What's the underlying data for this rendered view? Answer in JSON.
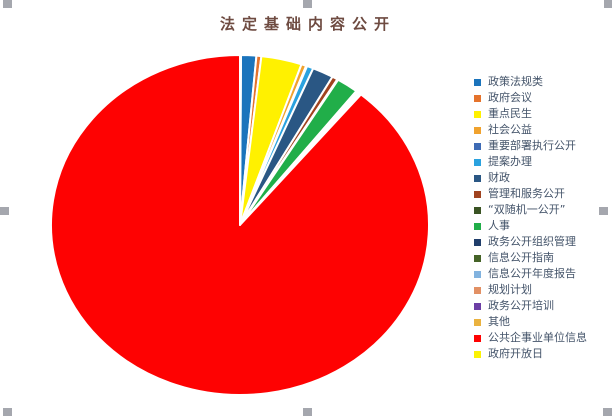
{
  "selection": {
    "handle_color": "#A5A7AE"
  },
  "chart_data": {
    "type": "pie",
    "title": "法定基础内容公开",
    "title_color": "#6E4B41",
    "legend_position": "right",
    "legend_text_color": "#44546A",
    "grid": false,
    "start_angle_deg": 0.3,
    "slices": [
      {
        "label": "政策法规类",
        "color": "#1B74BC",
        "angle_deg": 4.7,
        "percent": 1.3
      },
      {
        "label": "政府会议",
        "color": "#E5732C",
        "angle_deg": 1.5,
        "percent": 0.4
      },
      {
        "label": "重点民生",
        "color": "#FFF100",
        "angle_deg": 12.5,
        "percent": 3.5
      },
      {
        "label": "社会公益",
        "color": "#F0A22E",
        "angle_deg": 1.5,
        "percent": 0.4
      },
      {
        "label": "重要部署执行公开",
        "color": "#3E6BB5",
        "angle_deg": 0.3,
        "percent": 0.1
      },
      {
        "label": "提案办理",
        "color": "#2AA2DF",
        "angle_deg": 2.0,
        "percent": 0.6
      },
      {
        "label": "财政",
        "color": "#2A5784",
        "angle_deg": 6.5,
        "percent": 1.8
      },
      {
        "label": "管理和服务公开",
        "color": "#A0431F",
        "angle_deg": 1.7,
        "percent": 0.5
      },
      {
        "label": "“双随机一公开”",
        "color": "#3A5323",
        "angle_deg": 0.3,
        "percent": 0.1
      },
      {
        "label": "人事",
        "color": "#21AE49",
        "angle_deg": 6.7,
        "percent": 1.9
      },
      {
        "label": "政务公开组织管理",
        "color": "#203E6B",
        "angle_deg": 0.3,
        "percent": 0.1
      },
      {
        "label": "信息公开指南",
        "color": "#456327",
        "angle_deg": 0.3,
        "percent": 0.1
      },
      {
        "label": "信息公开年度报告",
        "color": "#82B3DF",
        "angle_deg": 0.3,
        "percent": 0.1
      },
      {
        "label": "规划计划",
        "color": "#E29064",
        "angle_deg": 0.3,
        "percent": 0.1
      },
      {
        "label": "政务公开培训",
        "color": "#6C3FA5",
        "angle_deg": 0.3,
        "percent": 0.1
      },
      {
        "label": "其他",
        "color": "#EAB23F",
        "angle_deg": 0.3,
        "percent": 0.1
      },
      {
        "label": "公共企事业单位信息",
        "color": "#FE0202",
        "angle_deg": 320.2,
        "percent": 88.9
      },
      {
        "label": "政府开放日",
        "color": "#FBF205",
        "angle_deg": 0.3,
        "percent": 0.1
      }
    ]
  }
}
